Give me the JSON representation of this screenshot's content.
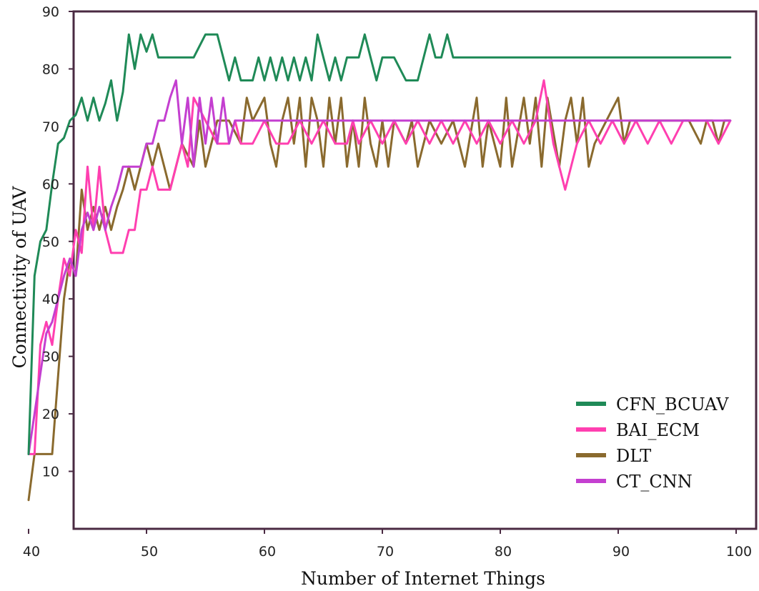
{
  "chart_data": {
    "type": "line",
    "title": "",
    "xlabel": "Number of Internet Things",
    "ylabel": "Connectivity of UAV",
    "xlim": [
      37,
      100
    ],
    "ylim": [
      0,
      90
    ],
    "xticks": [
      40,
      50,
      60,
      70,
      80,
      90,
      100
    ],
    "yticks": [
      10,
      20,
      30,
      40,
      50,
      60,
      70,
      80,
      90
    ],
    "grid": false,
    "legend_position": "bottom-right",
    "series": [
      {
        "name": "CFN_BCUAV",
        "color": "#1f8a57",
        "points": [
          [
            40,
            13
          ],
          [
            40.5,
            44
          ],
          [
            41,
            50
          ],
          [
            41.5,
            52
          ],
          [
            42,
            60
          ],
          [
            42.5,
            67
          ],
          [
            43,
            68
          ],
          [
            43.5,
            71
          ],
          [
            44,
            72
          ],
          [
            44.5,
            75
          ],
          [
            45,
            71
          ],
          [
            45.5,
            75
          ],
          [
            46,
            71
          ],
          [
            46.5,
            74
          ],
          [
            47,
            78
          ],
          [
            47.5,
            71
          ],
          [
            48,
            76
          ],
          [
            48.5,
            86
          ],
          [
            49,
            80
          ],
          [
            49.5,
            86
          ],
          [
            50,
            83
          ],
          [
            50.5,
            86
          ],
          [
            51,
            82
          ],
          [
            52,
            82
          ],
          [
            53,
            82
          ],
          [
            54,
            82
          ],
          [
            55,
            86
          ],
          [
            56,
            86
          ],
          [
            56.5,
            82
          ],
          [
            57,
            78
          ],
          [
            57.5,
            82
          ],
          [
            58,
            78
          ],
          [
            59,
            78
          ],
          [
            59.5,
            82
          ],
          [
            60,
            78
          ],
          [
            60.5,
            82
          ],
          [
            61,
            78
          ],
          [
            61.5,
            82
          ],
          [
            62,
            78
          ],
          [
            62.5,
            82
          ],
          [
            63,
            78
          ],
          [
            63.5,
            82
          ],
          [
            64,
            78
          ],
          [
            64.5,
            86
          ],
          [
            65,
            82
          ],
          [
            65.5,
            78
          ],
          [
            66,
            82
          ],
          [
            66.5,
            78
          ],
          [
            67,
            82
          ],
          [
            68,
            82
          ],
          [
            68.5,
            86
          ],
          [
            69,
            82
          ],
          [
            69.5,
            78
          ],
          [
            70,
            82
          ],
          [
            71,
            82
          ],
          [
            72,
            78
          ],
          [
            73,
            78
          ],
          [
            73.5,
            82
          ],
          [
            74,
            86
          ],
          [
            74.5,
            82
          ],
          [
            75,
            82
          ],
          [
            75.5,
            86
          ],
          [
            76,
            82
          ],
          [
            80,
            82
          ],
          [
            90,
            82
          ],
          [
            99.5,
            82
          ]
        ]
      },
      {
        "name": "BAI_ECM",
        "color": "#ff3fb0",
        "points": [
          [
            40,
            13
          ],
          [
            40.5,
            13
          ],
          [
            41,
            32
          ],
          [
            41.5,
            36
          ],
          [
            42,
            32
          ],
          [
            42.5,
            40
          ],
          [
            43,
            47
          ],
          [
            43.5,
            44
          ],
          [
            44,
            52
          ],
          [
            44.5,
            48
          ],
          [
            45,
            63
          ],
          [
            45.5,
            52
          ],
          [
            46,
            63
          ],
          [
            46.5,
            52
          ],
          [
            47,
            48
          ],
          [
            48,
            48
          ],
          [
            48.5,
            52
          ],
          [
            49,
            52
          ],
          [
            49.5,
            59
          ],
          [
            50,
            59
          ],
          [
            50.5,
            63
          ],
          [
            51,
            59
          ],
          [
            52,
            59
          ],
          [
            53,
            67
          ],
          [
            53.5,
            63
          ],
          [
            54,
            75
          ],
          [
            55,
            71
          ],
          [
            56,
            67
          ],
          [
            57,
            67
          ],
          [
            57.5,
            71
          ],
          [
            58,
            67
          ],
          [
            59,
            67
          ],
          [
            60,
            71
          ],
          [
            61,
            67
          ],
          [
            62,
            67
          ],
          [
            63,
            71
          ],
          [
            64,
            67
          ],
          [
            65,
            71
          ],
          [
            66,
            67
          ],
          [
            67,
            67
          ],
          [
            67.5,
            71
          ],
          [
            68,
            67
          ],
          [
            69,
            71
          ],
          [
            70,
            67
          ],
          [
            71,
            71
          ],
          [
            72,
            67
          ],
          [
            73,
            71
          ],
          [
            74,
            67
          ],
          [
            75,
            71
          ],
          [
            76,
            67
          ],
          [
            77,
            71
          ],
          [
            78,
            67
          ],
          [
            79,
            71
          ],
          [
            80,
            67
          ],
          [
            81,
            71
          ],
          [
            82,
            67
          ],
          [
            83,
            71
          ],
          [
            83.7,
            78
          ],
          [
            84.5,
            67
          ],
          [
            85.5,
            59
          ],
          [
            86.5,
            67
          ],
          [
            87.5,
            71
          ],
          [
            88.5,
            67
          ],
          [
            89.5,
            71
          ],
          [
            90.5,
            67
          ],
          [
            91.5,
            71
          ],
          [
            92.5,
            67
          ],
          [
            93.5,
            71
          ],
          [
            94.5,
            67
          ],
          [
            95.5,
            71
          ],
          [
            96.5,
            71
          ],
          [
            97.5,
            71
          ],
          [
            98.5,
            67
          ],
          [
            99.5,
            71
          ]
        ]
      },
      {
        "name": "DLT",
        "color": "#8a6a2e",
        "points": [
          [
            40,
            5
          ],
          [
            40.5,
            13
          ],
          [
            41,
            13
          ],
          [
            42,
            13
          ],
          [
            43,
            40
          ],
          [
            43.5,
            47
          ],
          [
            44,
            44
          ],
          [
            44.5,
            59
          ],
          [
            45,
            52
          ],
          [
            45.5,
            56
          ],
          [
            46,
            52
          ],
          [
            46.5,
            56
          ],
          [
            47,
            52
          ],
          [
            47.5,
            56
          ],
          [
            48,
            59
          ],
          [
            48.5,
            63
          ],
          [
            49,
            59
          ],
          [
            50,
            67
          ],
          [
            50.5,
            63
          ],
          [
            51,
            67
          ],
          [
            51.5,
            63
          ],
          [
            52,
            59
          ],
          [
            53,
            67
          ],
          [
            54,
            63
          ],
          [
            54.5,
            71
          ],
          [
            55,
            63
          ],
          [
            56,
            71
          ],
          [
            57,
            71
          ],
          [
            58,
            67
          ],
          [
            58.5,
            75
          ],
          [
            59,
            71
          ],
          [
            60,
            75
          ],
          [
            60.5,
            67
          ],
          [
            61,
            63
          ],
          [
            61.5,
            71
          ],
          [
            62,
            75
          ],
          [
            62.5,
            67
          ],
          [
            63,
            75
          ],
          [
            63.5,
            63
          ],
          [
            64,
            75
          ],
          [
            64.5,
            71
          ],
          [
            65,
            63
          ],
          [
            65.5,
            75
          ],
          [
            66,
            67
          ],
          [
            66.5,
            75
          ],
          [
            67,
            63
          ],
          [
            67.5,
            71
          ],
          [
            68,
            63
          ],
          [
            68.5,
            75
          ],
          [
            69,
            67
          ],
          [
            69.5,
            63
          ],
          [
            70,
            71
          ],
          [
            70.5,
            63
          ],
          [
            71,
            71
          ],
          [
            72,
            67
          ],
          [
            72.5,
            71
          ],
          [
            73,
            63
          ],
          [
            74,
            71
          ],
          [
            75,
            67
          ],
          [
            76,
            71
          ],
          [
            77,
            63
          ],
          [
            78,
            75
          ],
          [
            78.5,
            63
          ],
          [
            79,
            71
          ],
          [
            80,
            63
          ],
          [
            80.5,
            75
          ],
          [
            81,
            63
          ],
          [
            82,
            75
          ],
          [
            82.5,
            67
          ],
          [
            83,
            75
          ],
          [
            83.5,
            63
          ],
          [
            84,
            75
          ],
          [
            85,
            63
          ],
          [
            85.5,
            71
          ],
          [
            86,
            75
          ],
          [
            86.5,
            67
          ],
          [
            87,
            75
          ],
          [
            87.5,
            63
          ],
          [
            88,
            67
          ],
          [
            89,
            71
          ],
          [
            90,
            75
          ],
          [
            90.5,
            67
          ],
          [
            91,
            71
          ],
          [
            92,
            71
          ],
          [
            93,
            71
          ],
          [
            94,
            71
          ],
          [
            95,
            71
          ],
          [
            96,
            71
          ],
          [
            97,
            67
          ],
          [
            97.5,
            71
          ],
          [
            98,
            71
          ],
          [
            98.5,
            67
          ],
          [
            99,
            71
          ],
          [
            99.5,
            71
          ]
        ]
      },
      {
        "name": "CT_CNN",
        "color": "#c43fd0",
        "points": [
          [
            40,
            13
          ],
          [
            40.5,
            20
          ],
          [
            41,
            27
          ],
          [
            41.5,
            34
          ],
          [
            42,
            36
          ],
          [
            42.5,
            40
          ],
          [
            43,
            44
          ],
          [
            43.5,
            47
          ],
          [
            44,
            44
          ],
          [
            44.5,
            52
          ],
          [
            45,
            55
          ],
          [
            45.5,
            52
          ],
          [
            46,
            56
          ],
          [
            46.5,
            52
          ],
          [
            47,
            56
          ],
          [
            47.5,
            59
          ],
          [
            48,
            63
          ],
          [
            49,
            63
          ],
          [
            49.5,
            63
          ],
          [
            50,
            67
          ],
          [
            50.5,
            67
          ],
          [
            51,
            71
          ],
          [
            51.5,
            71
          ],
          [
            52,
            75
          ],
          [
            52.5,
            78
          ],
          [
            53,
            67
          ],
          [
            53.5,
            75
          ],
          [
            54,
            63
          ],
          [
            54.5,
            75
          ],
          [
            55,
            67
          ],
          [
            55.5,
            75
          ],
          [
            56,
            67
          ],
          [
            56.5,
            75
          ],
          [
            57,
            67
          ],
          [
            57.5,
            71
          ],
          [
            58,
            71
          ],
          [
            59,
            71
          ],
          [
            60,
            71
          ],
          [
            62,
            71
          ],
          [
            64,
            71
          ],
          [
            66,
            71
          ],
          [
            68,
            71
          ],
          [
            70,
            71
          ],
          [
            72,
            71
          ],
          [
            74,
            71
          ],
          [
            76,
            71
          ],
          [
            78,
            71
          ],
          [
            80,
            71
          ],
          [
            82,
            71
          ],
          [
            84,
            71
          ],
          [
            86,
            71
          ],
          [
            88,
            71
          ],
          [
            90,
            71
          ],
          [
            92,
            71
          ],
          [
            94,
            71
          ],
          [
            96,
            71
          ],
          [
            98,
            71
          ],
          [
            99.5,
            71
          ]
        ]
      }
    ]
  }
}
